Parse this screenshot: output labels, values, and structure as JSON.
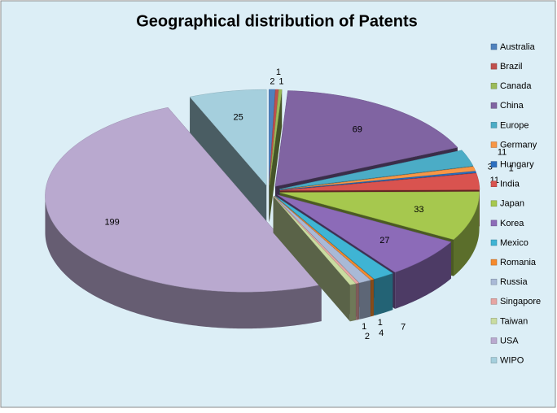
{
  "chart_data": {
    "type": "pie",
    "title": "Geographical distribution of Patents",
    "categories": [
      "Australia",
      "Brazil",
      "Canada",
      "China",
      "Europe",
      "Germany",
      "Hungary",
      "India",
      "Japan",
      "Korea",
      "Mexico",
      "Romania",
      "Russia",
      "Singapore",
      "Taiwan",
      "USA",
      "WIPO"
    ],
    "values": [
      2,
      1,
      1,
      69,
      11,
      3,
      1,
      11,
      33,
      27,
      7,
      1,
      4,
      1,
      2,
      199,
      25
    ],
    "colors": [
      "#4F81BD",
      "#C0504D",
      "#9BBB59",
      "#8064A2",
      "#4BACC6",
      "#F79646",
      "#2C6FC0",
      "#D9534F",
      "#A6C84E",
      "#8C6BB8",
      "#3FB4D4",
      "#F58A2E",
      "#A9B9D6",
      "#E6A5A3",
      "#C9DCA0",
      "#B9A9CF",
      "#A5CFDD"
    ],
    "legend": "right"
  }
}
